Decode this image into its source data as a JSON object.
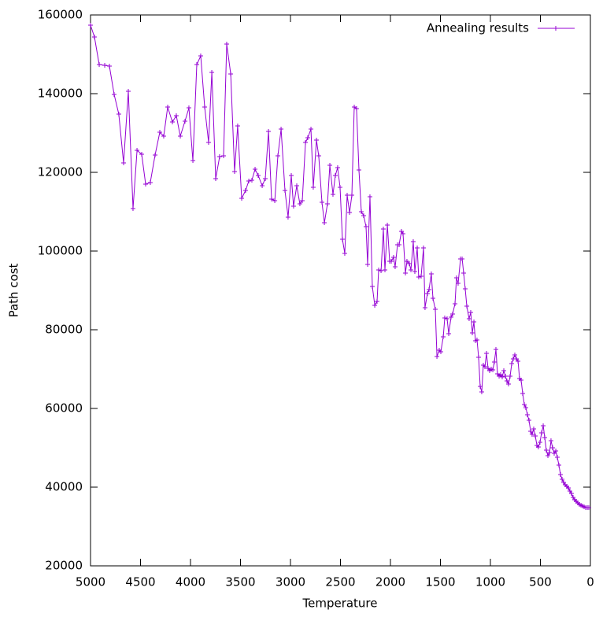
{
  "chart_data": {
    "type": "line",
    "xlabel": "Temperature",
    "ylabel": "Path cost",
    "xlim": [
      5000,
      0
    ],
    "ylim": [
      20000,
      160000
    ],
    "xticks": [
      5000,
      4500,
      4000,
      3500,
      3000,
      2500,
      2000,
      1500,
      1000,
      500,
      0
    ],
    "yticks": [
      20000,
      40000,
      60000,
      80000,
      100000,
      120000,
      140000,
      160000
    ],
    "legend": "top-right",
    "markers": true,
    "series": [
      {
        "name": "Annealing results",
        "color": "#9400d3",
        "x": [
          5000,
          4961,
          4913,
          4858,
          4811,
          4764,
          4717,
          4669,
          4622,
          4575,
          4535,
          4488,
          4449,
          4402,
          4354,
          4307,
          4268,
          4228,
          4181,
          4142,
          4102,
          4055,
          4016,
          3976,
          3937,
          3898,
          3858,
          3819,
          3787,
          3748,
          3709,
          3669,
          3638,
          3598,
          3559,
          3528,
          3488,
          3449,
          3417,
          3386,
          3354,
          3323,
          3283,
          3252,
          3220,
          3189,
          3157,
          3126,
          3094,
          3055,
          3024,
          2992,
          2969,
          2937,
          2906,
          2882,
          2850,
          2827,
          2795,
          2772,
          2740,
          2717,
          2685,
          2661,
          2630,
          2606,
          2575,
          2551,
          2528,
          2504,
          2480,
          2457,
          2433,
          2409,
          2386,
          2362,
          2339,
          2315,
          2291,
          2268,
          2244,
          2228,
          2205,
          2181,
          2157,
          2134,
          2118,
          2094,
          2071,
          2055,
          2031,
          2008,
          1992,
          1969,
          1953,
          1929,
          1913,
          1890,
          1874,
          1850,
          1835,
          1811,
          1795,
          1772,
          1756,
          1732,
          1717,
          1693,
          1669,
          1654,
          1630,
          1614,
          1591,
          1575,
          1551,
          1535,
          1512,
          1496,
          1472,
          1457,
          1433,
          1417,
          1394,
          1378,
          1354,
          1339,
          1323,
          1299,
          1283,
          1268,
          1252,
          1236,
          1213,
          1197,
          1181,
          1165,
          1150,
          1134,
          1118,
          1102,
          1087,
          1071,
          1055,
          1039,
          1024,
          1008,
          992,
          976,
          961,
          945,
          929,
          913,
          898,
          882,
          866,
          850,
          835,
          819,
          803,
          787,
          772,
          756,
          740,
          724,
          709,
          693,
          677,
          661,
          646,
          630,
          614,
          598,
          583,
          567,
          551,
          535,
          520,
          504,
          488,
          472,
          457,
          441,
          425,
          409,
          394,
          378,
          362,
          346,
          331,
          315,
          299,
          283,
          268,
          252,
          236,
          220,
          205,
          189,
          173,
          157,
          142,
          126,
          110,
          94,
          79,
          63,
          47,
          31,
          16
        ],
        "values": [
          157400,
          154400,
          147400,
          147200,
          147000,
          139800,
          134800,
          122400,
          140600,
          110800,
          125600,
          124600,
          117000,
          117400,
          124400,
          130200,
          129200,
          136600,
          132800,
          134400,
          129200,
          133000,
          136400,
          123000,
          147400,
          149600,
          136600,
          127600,
          145400,
          118400,
          124000,
          124200,
          152600,
          145000,
          120200,
          131800,
          113400,
          115400,
          117800,
          118000,
          120800,
          119200,
          116600,
          118400,
          130400,
          113200,
          112800,
          124200,
          131000,
          115400,
          108600,
          119200,
          111400,
          116600,
          112000,
          112800,
          127600,
          128800,
          131000,
          116200,
          128200,
          124200,
          112400,
          107200,
          112000,
          121800,
          114400,
          119200,
          121200,
          116200,
          103000,
          99400,
          114200,
          109800,
          114200,
          136600,
          136200,
          120600,
          110000,
          109000,
          106200,
          96600,
          113800,
          91000,
          86200,
          87200,
          95200,
          95000,
          105600,
          95200,
          106600,
          97400,
          97400,
          98400,
          96000,
          101600,
          101600,
          105000,
          104400,
          94400,
          97400,
          96800,
          95200,
          102400,
          94800,
          100800,
          93400,
          93600,
          100800,
          85600,
          89200,
          90200,
          94200,
          88000,
          85200,
          73200,
          74800,
          74400,
          78200,
          83000,
          82800,
          79000,
          83200,
          84000,
          86600,
          93200,
          91800,
          98000,
          98000,
          94400,
          90400,
          86000,
          82800,
          84400,
          79200,
          82000,
          77200,
          77400,
          73000,
          65600,
          64200,
          71000,
          70600,
          74000,
          70200,
          69600,
          70000,
          69800,
          71800,
          75000,
          68800,
          68200,
          68600,
          68000,
          69600,
          68200,
          67000,
          66200,
          68200,
          71400,
          72600,
          73600,
          72600,
          72000,
          67600,
          67200,
          63800,
          61000,
          60200,
          58400,
          57000,
          54200,
          53400,
          54800,
          53000,
          50600,
          50200,
          51400,
          53800,
          55600,
          52600,
          49400,
          48000,
          48800,
          51800,
          50000,
          48600,
          49200,
          47600,
          45600,
          43200,
          42000,
          41200,
          40600,
          40200,
          39800,
          39000,
          38400,
          37400,
          36800,
          36400,
          36000,
          35600,
          35400,
          35200,
          35000,
          34800,
          34800,
          34800
        ]
      }
    ]
  }
}
